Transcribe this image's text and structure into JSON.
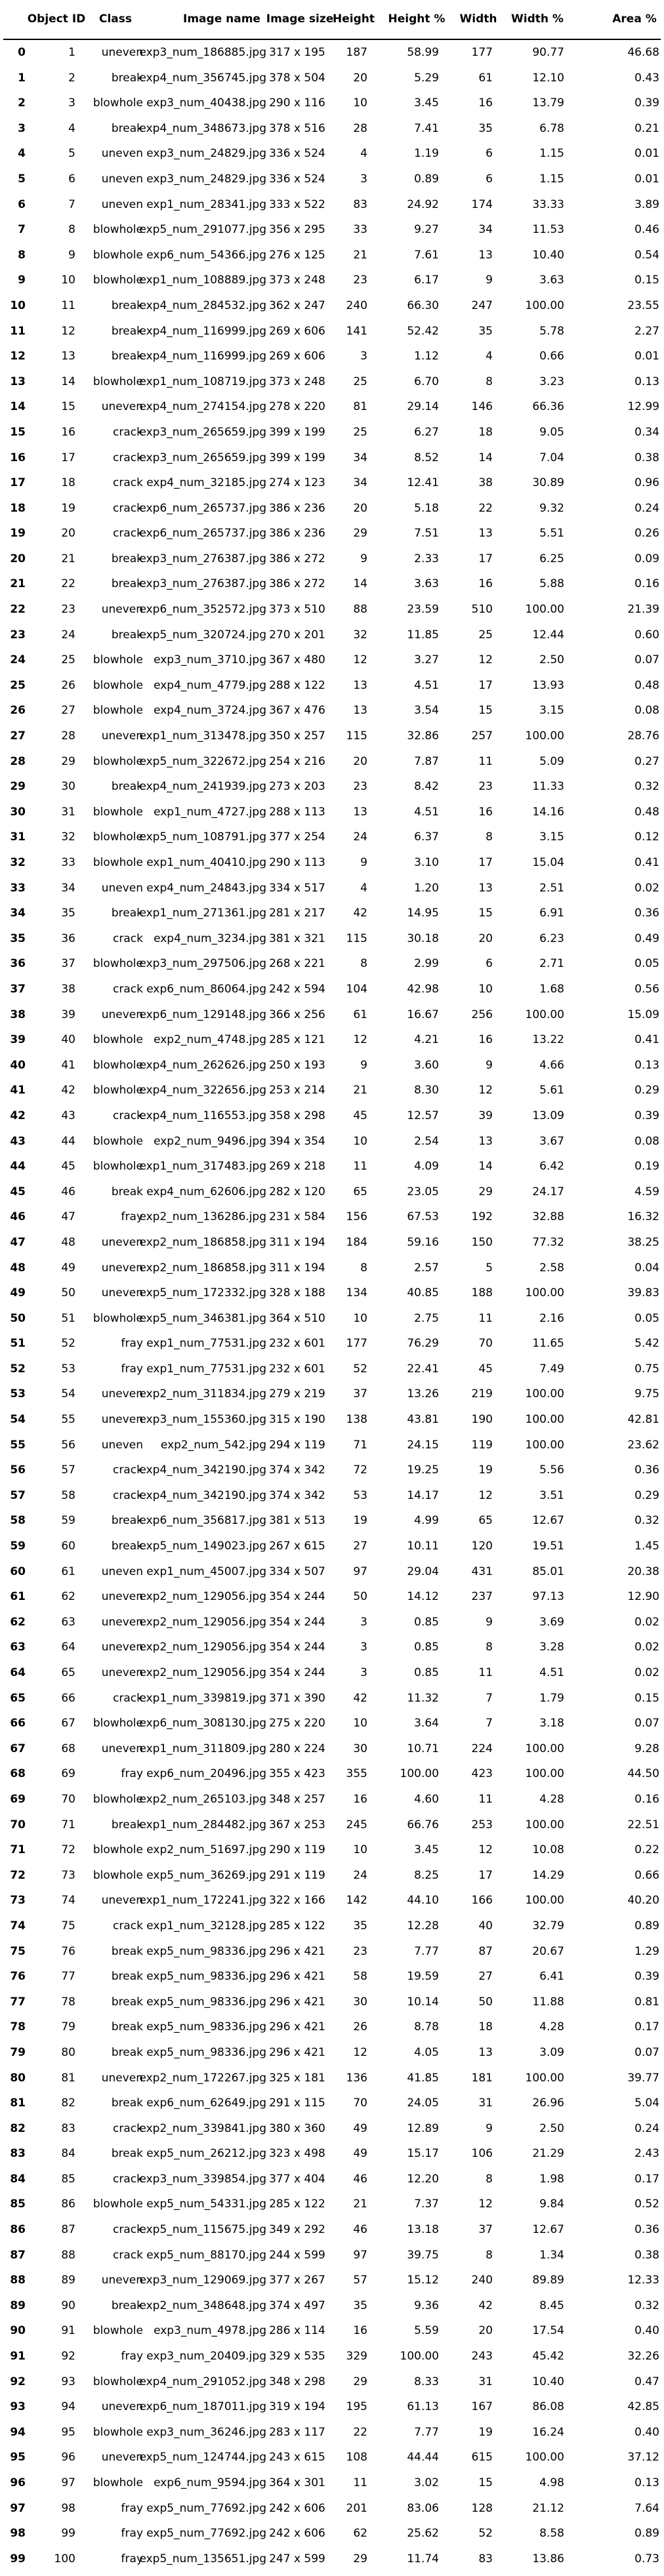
{
  "table": {
    "columns": [
      "",
      "Object ID",
      "Class",
      "Image name",
      "Image size",
      "Height",
      "Height %",
      "Width",
      "Width %",
      "Area %"
    ],
    "rows": [
      [
        "0",
        "1",
        "uneven",
        "exp3_num_186885.jpg",
        "317 x 195",
        "187",
        "58.99",
        "177",
        "90.77",
        "46.68"
      ],
      [
        "1",
        "2",
        "break",
        "exp4_num_356745.jpg",
        "378 x 504",
        "20",
        "5.29",
        "61",
        "12.10",
        "0.43"
      ],
      [
        "2",
        "3",
        "blowhole",
        "exp3_num_40438.jpg",
        "290 x 116",
        "10",
        "3.45",
        "16",
        "13.79",
        "0.39"
      ],
      [
        "3",
        "4",
        "break",
        "exp4_num_348673.jpg",
        "378 x 516",
        "28",
        "7.41",
        "35",
        "6.78",
        "0.21"
      ],
      [
        "4",
        "5",
        "uneven",
        "exp3_num_24829.jpg",
        "336 x 524",
        "4",
        "1.19",
        "6",
        "1.15",
        "0.01"
      ],
      [
        "5",
        "6",
        "uneven",
        "exp3_num_24829.jpg",
        "336 x 524",
        "3",
        "0.89",
        "6",
        "1.15",
        "0.01"
      ],
      [
        "6",
        "7",
        "uneven",
        "exp1_num_28341.jpg",
        "333 x 522",
        "83",
        "24.92",
        "174",
        "33.33",
        "3.89"
      ],
      [
        "7",
        "8",
        "blowhole",
        "exp5_num_291077.jpg",
        "356 x 295",
        "33",
        "9.27",
        "34",
        "11.53",
        "0.46"
      ],
      [
        "8",
        "9",
        "blowhole",
        "exp6_num_54366.jpg",
        "276 x 125",
        "21",
        "7.61",
        "13",
        "10.40",
        "0.54"
      ],
      [
        "9",
        "10",
        "blowhole",
        "exp1_num_108889.jpg",
        "373 x 248",
        "23",
        "6.17",
        "9",
        "3.63",
        "0.15"
      ],
      [
        "10",
        "11",
        "break",
        "exp4_num_284532.jpg",
        "362 x 247",
        "240",
        "66.30",
        "247",
        "100.00",
        "23.55"
      ],
      [
        "11",
        "12",
        "break",
        "exp4_num_116999.jpg",
        "269 x 606",
        "141",
        "52.42",
        "35",
        "5.78",
        "2.27"
      ],
      [
        "12",
        "13",
        "break",
        "exp4_num_116999.jpg",
        "269 x 606",
        "3",
        "1.12",
        "4",
        "0.66",
        "0.01"
      ],
      [
        "13",
        "14",
        "blowhole",
        "exp1_num_108719.jpg",
        "373 x 248",
        "25",
        "6.70",
        "8",
        "3.23",
        "0.13"
      ],
      [
        "14",
        "15",
        "uneven",
        "exp4_num_274154.jpg",
        "278 x 220",
        "81",
        "29.14",
        "146",
        "66.36",
        "12.99"
      ],
      [
        "15",
        "16",
        "crack",
        "exp3_num_265659.jpg",
        "399 x 199",
        "25",
        "6.27",
        "18",
        "9.05",
        "0.34"
      ],
      [
        "16",
        "17",
        "crack",
        "exp3_num_265659.jpg",
        "399 x 199",
        "34",
        "8.52",
        "14",
        "7.04",
        "0.38"
      ],
      [
        "17",
        "18",
        "crack",
        "exp4_num_32185.jpg",
        "274 x 123",
        "34",
        "12.41",
        "38",
        "30.89",
        "0.96"
      ],
      [
        "18",
        "19",
        "crack",
        "exp6_num_265737.jpg",
        "386 x 236",
        "20",
        "5.18",
        "22",
        "9.32",
        "0.24"
      ],
      [
        "19",
        "20",
        "crack",
        "exp6_num_265737.jpg",
        "386 x 236",
        "29",
        "7.51",
        "13",
        "5.51",
        "0.26"
      ],
      [
        "20",
        "21",
        "break",
        "exp3_num_276387.jpg",
        "386 x 272",
        "9",
        "2.33",
        "17",
        "6.25",
        "0.09"
      ],
      [
        "21",
        "22",
        "break",
        "exp3_num_276387.jpg",
        "386 x 272",
        "14",
        "3.63",
        "16",
        "5.88",
        "0.16"
      ],
      [
        "22",
        "23",
        "uneven",
        "exp6_num_352572.jpg",
        "373 x 510",
        "88",
        "23.59",
        "510",
        "100.00",
        "21.39"
      ],
      [
        "23",
        "24",
        "break",
        "exp5_num_320724.jpg",
        "270 x 201",
        "32",
        "11.85",
        "25",
        "12.44",
        "0.60"
      ],
      [
        "24",
        "25",
        "blowhole",
        "exp3_num_3710.jpg",
        "367 x 480",
        "12",
        "3.27",
        "12",
        "2.50",
        "0.07"
      ],
      [
        "25",
        "26",
        "blowhole",
        "exp4_num_4779.jpg",
        "288 x 122",
        "13",
        "4.51",
        "17",
        "13.93",
        "0.48"
      ],
      [
        "26",
        "27",
        "blowhole",
        "exp4_num_3724.jpg",
        "367 x 476",
        "13",
        "3.54",
        "15",
        "3.15",
        "0.08"
      ],
      [
        "27",
        "28",
        "uneven",
        "exp1_num_313478.jpg",
        "350 x 257",
        "115",
        "32.86",
        "257",
        "100.00",
        "28.76"
      ],
      [
        "28",
        "29",
        "blowhole",
        "exp5_num_322672.jpg",
        "254 x 216",
        "20",
        "7.87",
        "11",
        "5.09",
        "0.27"
      ],
      [
        "29",
        "30",
        "break",
        "exp4_num_241939.jpg",
        "273 x 203",
        "23",
        "8.42",
        "23",
        "11.33",
        "0.32"
      ],
      [
        "30",
        "31",
        "blowhole",
        "exp1_num_4727.jpg",
        "288 x 113",
        "13",
        "4.51",
        "16",
        "14.16",
        "0.48"
      ],
      [
        "31",
        "32",
        "blowhole",
        "exp5_num_108791.jpg",
        "377 x 254",
        "24",
        "6.37",
        "8",
        "3.15",
        "0.12"
      ],
      [
        "32",
        "33",
        "blowhole",
        "exp1_num_40410.jpg",
        "290 x 113",
        "9",
        "3.10",
        "17",
        "15.04",
        "0.41"
      ],
      [
        "33",
        "34",
        "uneven",
        "exp4_num_24843.jpg",
        "334 x 517",
        "4",
        "1.20",
        "13",
        "2.51",
        "0.02"
      ],
      [
        "34",
        "35",
        "break",
        "exp1_num_271361.jpg",
        "281 x 217",
        "42",
        "14.95",
        "15",
        "6.91",
        "0.36"
      ],
      [
        "35",
        "36",
        "crack",
        "exp4_num_3234.jpg",
        "381 x 321",
        "115",
        "30.18",
        "20",
        "6.23",
        "0.49"
      ],
      [
        "36",
        "37",
        "blowhole",
        "exp3_num_297506.jpg",
        "268 x 221",
        "8",
        "2.99",
        "6",
        "2.71",
        "0.05"
      ],
      [
        "37",
        "38",
        "crack",
        "exp6_num_86064.jpg",
        "242 x 594",
        "104",
        "42.98",
        "10",
        "1.68",
        "0.56"
      ],
      [
        "38",
        "39",
        "uneven",
        "exp6_num_129148.jpg",
        "366 x 256",
        "61",
        "16.67",
        "256",
        "100.00",
        "15.09"
      ],
      [
        "39",
        "40",
        "blowhole",
        "exp2_num_4748.jpg",
        "285 x 121",
        "12",
        "4.21",
        "16",
        "13.22",
        "0.41"
      ],
      [
        "40",
        "41",
        "blowhole",
        "exp4_num_262626.jpg",
        "250 x 193",
        "9",
        "3.60",
        "9",
        "4.66",
        "0.13"
      ],
      [
        "41",
        "42",
        "blowhole",
        "exp4_num_322656.jpg",
        "253 x 214",
        "21",
        "8.30",
        "12",
        "5.61",
        "0.29"
      ],
      [
        "42",
        "43",
        "crack",
        "exp4_num_116553.jpg",
        "358 x 298",
        "45",
        "12.57",
        "39",
        "13.09",
        "0.39"
      ],
      [
        "43",
        "44",
        "blowhole",
        "exp2_num_9496.jpg",
        "394 x 354",
        "10",
        "2.54",
        "13",
        "3.67",
        "0.08"
      ],
      [
        "44",
        "45",
        "blowhole",
        "exp1_num_317483.jpg",
        "269 x 218",
        "11",
        "4.09",
        "14",
        "6.42",
        "0.19"
      ],
      [
        "45",
        "46",
        "break",
        "exp4_num_62606.jpg",
        "282 x 120",
        "65",
        "23.05",
        "29",
        "24.17",
        "4.59"
      ],
      [
        "46",
        "47",
        "fray",
        "exp2_num_136286.jpg",
        "231 x 584",
        "156",
        "67.53",
        "192",
        "32.88",
        "16.32"
      ],
      [
        "47",
        "48",
        "uneven",
        "exp2_num_186858.jpg",
        "311 x 194",
        "184",
        "59.16",
        "150",
        "77.32",
        "38.25"
      ],
      [
        "48",
        "49",
        "uneven",
        "exp2_num_186858.jpg",
        "311 x 194",
        "8",
        "2.57",
        "5",
        "2.58",
        "0.04"
      ],
      [
        "49",
        "50",
        "uneven",
        "exp5_num_172332.jpg",
        "328 x 188",
        "134",
        "40.85",
        "188",
        "100.00",
        "39.83"
      ],
      [
        "50",
        "51",
        "blowhole",
        "exp5_num_346381.jpg",
        "364 x 510",
        "10",
        "2.75",
        "11",
        "2.16",
        "0.05"
      ],
      [
        "51",
        "52",
        "fray",
        "exp1_num_77531.jpg",
        "232 x 601",
        "177",
        "76.29",
        "70",
        "11.65",
        "5.42"
      ],
      [
        "52",
        "53",
        "fray",
        "exp1_num_77531.jpg",
        "232 x 601",
        "52",
        "22.41",
        "45",
        "7.49",
        "0.75"
      ],
      [
        "53",
        "54",
        "uneven",
        "exp2_num_311834.jpg",
        "279 x 219",
        "37",
        "13.26",
        "219",
        "100.00",
        "9.75"
      ],
      [
        "54",
        "55",
        "uneven",
        "exp3_num_155360.jpg",
        "315 x 190",
        "138",
        "43.81",
        "190",
        "100.00",
        "42.81"
      ],
      [
        "55",
        "56",
        "uneven",
        "exp2_num_542.jpg",
        "294 x 119",
        "71",
        "24.15",
        "119",
        "100.00",
        "23.62"
      ],
      [
        "56",
        "57",
        "crack",
        "exp4_num_342190.jpg",
        "374 x 342",
        "72",
        "19.25",
        "19",
        "5.56",
        "0.36"
      ],
      [
        "57",
        "58",
        "crack",
        "exp4_num_342190.jpg",
        "374 x 342",
        "53",
        "14.17",
        "12",
        "3.51",
        "0.29"
      ],
      [
        "58",
        "59",
        "break",
        "exp6_num_356817.jpg",
        "381 x 513",
        "19",
        "4.99",
        "65",
        "12.67",
        "0.32"
      ],
      [
        "59",
        "60",
        "break",
        "exp5_num_149023.jpg",
        "267 x 615",
        "27",
        "10.11",
        "120",
        "19.51",
        "1.45"
      ],
      [
        "60",
        "61",
        "uneven",
        "exp1_num_45007.jpg",
        "334 x 507",
        "97",
        "29.04",
        "431",
        "85.01",
        "20.38"
      ],
      [
        "61",
        "62",
        "uneven",
        "exp2_num_129056.jpg",
        "354 x 244",
        "50",
        "14.12",
        "237",
        "97.13",
        "12.90"
      ],
      [
        "62",
        "63",
        "uneven",
        "exp2_num_129056.jpg",
        "354 x 244",
        "3",
        "0.85",
        "9",
        "3.69",
        "0.02"
      ],
      [
        "63",
        "64",
        "uneven",
        "exp2_num_129056.jpg",
        "354 x 244",
        "3",
        "0.85",
        "8",
        "3.28",
        "0.02"
      ],
      [
        "64",
        "65",
        "uneven",
        "exp2_num_129056.jpg",
        "354 x 244",
        "3",
        "0.85",
        "11",
        "4.51",
        "0.02"
      ],
      [
        "65",
        "66",
        "crack",
        "exp1_num_339819.jpg",
        "371 x 390",
        "42",
        "11.32",
        "7",
        "1.79",
        "0.15"
      ],
      [
        "66",
        "67",
        "blowhole",
        "exp6_num_308130.jpg",
        "275 x 220",
        "10",
        "3.64",
        "7",
        "3.18",
        "0.07"
      ],
      [
        "67",
        "68",
        "uneven",
        "exp1_num_311809.jpg",
        "280 x 224",
        "30",
        "10.71",
        "224",
        "100.00",
        "9.28"
      ],
      [
        "68",
        "69",
        "fray",
        "exp6_num_20496.jpg",
        "355 x 423",
        "355",
        "100.00",
        "423",
        "100.00",
        "44.50"
      ],
      [
        "69",
        "70",
        "blowhole",
        "exp2_num_265103.jpg",
        "348 x 257",
        "16",
        "4.60",
        "11",
        "4.28",
        "0.16"
      ],
      [
        "70",
        "71",
        "break",
        "exp1_num_284482.jpg",
        "367 x 253",
        "245",
        "66.76",
        "253",
        "100.00",
        "22.51"
      ],
      [
        "71",
        "72",
        "blowhole",
        "exp2_num_51697.jpg",
        "290 x 119",
        "10",
        "3.45",
        "12",
        "10.08",
        "0.22"
      ],
      [
        "72",
        "73",
        "blowhole",
        "exp5_num_36269.jpg",
        "291 x 119",
        "24",
        "8.25",
        "17",
        "14.29",
        "0.66"
      ],
      [
        "73",
        "74",
        "uneven",
        "exp1_num_172241.jpg",
        "322 x 166",
        "142",
        "44.10",
        "166",
        "100.00",
        "40.20"
      ],
      [
        "74",
        "75",
        "crack",
        "exp1_num_32128.jpg",
        "285 x 122",
        "35",
        "12.28",
        "40",
        "32.79",
        "0.89"
      ],
      [
        "75",
        "76",
        "break",
        "exp5_num_98336.jpg",
        "296 x 421",
        "23",
        "7.77",
        "87",
        "20.67",
        "1.29"
      ],
      [
        "76",
        "77",
        "break",
        "exp5_num_98336.jpg",
        "296 x 421",
        "58",
        "19.59",
        "27",
        "6.41",
        "0.39"
      ],
      [
        "77",
        "78",
        "break",
        "exp5_num_98336.jpg",
        "296 x 421",
        "30",
        "10.14",
        "50",
        "11.88",
        "0.81"
      ],
      [
        "78",
        "79",
        "break",
        "exp5_num_98336.jpg",
        "296 x 421",
        "26",
        "8.78",
        "18",
        "4.28",
        "0.17"
      ],
      [
        "79",
        "80",
        "break",
        "exp5_num_98336.jpg",
        "296 x 421",
        "12",
        "4.05",
        "13",
        "3.09",
        "0.07"
      ],
      [
        "80",
        "81",
        "uneven",
        "exp2_num_172267.jpg",
        "325 x 181",
        "136",
        "41.85",
        "181",
        "100.00",
        "39.77"
      ],
      [
        "81",
        "82",
        "break",
        "exp6_num_62649.jpg",
        "291 x 115",
        "70",
        "24.05",
        "31",
        "26.96",
        "5.04"
      ],
      [
        "82",
        "83",
        "crack",
        "exp2_num_339841.jpg",
        "380 x 360",
        "49",
        "12.89",
        "9",
        "2.50",
        "0.24"
      ],
      [
        "83",
        "84",
        "break",
        "exp5_num_26212.jpg",
        "323 x 498",
        "49",
        "15.17",
        "106",
        "21.29",
        "2.43"
      ],
      [
        "84",
        "85",
        "crack",
        "exp3_num_339854.jpg",
        "377 x 404",
        "46",
        "12.20",
        "8",
        "1.98",
        "0.17"
      ],
      [
        "85",
        "86",
        "blowhole",
        "exp5_num_54331.jpg",
        "285 x 122",
        "21",
        "7.37",
        "12",
        "9.84",
        "0.52"
      ],
      [
        "86",
        "87",
        "crack",
        "exp5_num_115675.jpg",
        "349 x 292",
        "46",
        "13.18",
        "37",
        "12.67",
        "0.36"
      ],
      [
        "87",
        "88",
        "crack",
        "exp5_num_88170.jpg",
        "244 x 599",
        "97",
        "39.75",
        "8",
        "1.34",
        "0.38"
      ],
      [
        "88",
        "89",
        "uneven",
        "exp3_num_129069.jpg",
        "377 x 267",
        "57",
        "15.12",
        "240",
        "89.89",
        "12.33"
      ],
      [
        "89",
        "90",
        "break",
        "exp2_num_348648.jpg",
        "374 x 497",
        "35",
        "9.36",
        "42",
        "8.45",
        "0.32"
      ],
      [
        "90",
        "91",
        "blowhole",
        "exp3_num_4978.jpg",
        "286 x 114",
        "16",
        "5.59",
        "20",
        "17.54",
        "0.40"
      ],
      [
        "91",
        "92",
        "fray",
        "exp3_num_20409.jpg",
        "329 x 535",
        "329",
        "100.00",
        "243",
        "45.42",
        "32.26"
      ],
      [
        "92",
        "93",
        "blowhole",
        "exp4_num_291052.jpg",
        "348 x 298",
        "29",
        "8.33",
        "31",
        "10.40",
        "0.47"
      ],
      [
        "93",
        "94",
        "uneven",
        "exp6_num_187011.jpg",
        "319 x 194",
        "195",
        "61.13",
        "167",
        "86.08",
        "42.85"
      ],
      [
        "94",
        "95",
        "blowhole",
        "exp3_num_36246.jpg",
        "283 x 117",
        "22",
        "7.77",
        "19",
        "16.24",
        "0.40"
      ],
      [
        "95",
        "96",
        "uneven",
        "exp5_num_124744.jpg",
        "243 x 615",
        "108",
        "44.44",
        "615",
        "100.00",
        "37.12"
      ],
      [
        "96",
        "97",
        "blowhole",
        "exp6_num_9594.jpg",
        "364 x 301",
        "11",
        "3.02",
        "15",
        "4.98",
        "0.13"
      ],
      [
        "97",
        "98",
        "fray",
        "exp5_num_77692.jpg",
        "242 x 606",
        "201",
        "83.06",
        "128",
        "21.12",
        "7.64"
      ],
      [
        "98",
        "99",
        "fray",
        "exp5_num_77692.jpg",
        "242 x 606",
        "62",
        "25.62",
        "52",
        "8.58",
        "0.89"
      ],
      [
        "99",
        "100",
        "fray",
        "exp5_num_135651.jpg",
        "247 x 599",
        "29",
        "11.74",
        "83",
        "13.86",
        "0.73"
      ]
    ]
  }
}
